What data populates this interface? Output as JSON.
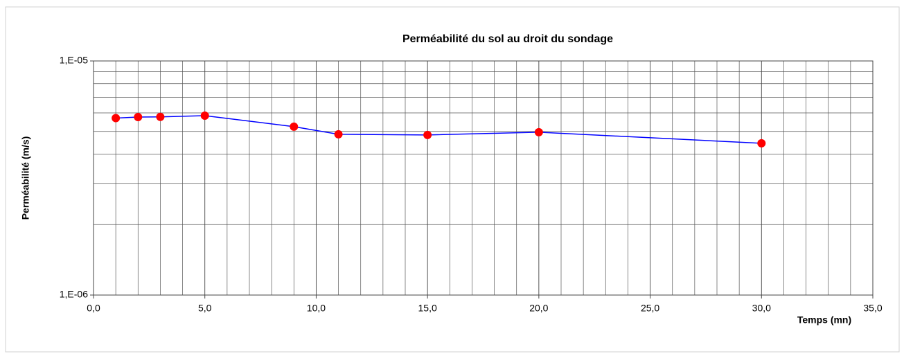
{
  "chart_data": {
    "type": "line",
    "title": "Perméabilité du sol au droit du sondage",
    "x_label": "Temps (mn)",
    "y_label": "Perméabilité (m/s)",
    "x": [
      1,
      2,
      3,
      5,
      9,
      11,
      15,
      20,
      30
    ],
    "series": [
      {
        "color": "#0000ff",
        "marker_color": "#ff0000",
        "values": [
          5.7e-06,
          5.76e-06,
          5.77e-06,
          5.84e-06,
          5.24e-06,
          4.86e-06,
          4.83e-06,
          4.96e-06,
          4.45e-06
        ]
      }
    ],
    "xlim": [
      0,
      35
    ],
    "xticks": [
      {
        "value": 0,
        "label": "0,0"
      },
      {
        "value": 5,
        "label": "5,0"
      },
      {
        "value": 10,
        "label": "10,0"
      },
      {
        "value": 15,
        "label": "15,0"
      },
      {
        "value": 20,
        "label": "20,0"
      },
      {
        "value": 25,
        "label": "25,0"
      },
      {
        "value": 30,
        "label": "30,0"
      },
      {
        "value": 35,
        "label": "35,0"
      }
    ],
    "ylim": [
      1e-06,
      1e-05
    ],
    "yticks": [
      {
        "value": 1e-06,
        "label": "1,E-06"
      },
      {
        "value": 1e-05,
        "label": "1,E-05"
      }
    ],
    "ylog": true,
    "grid": true,
    "minor_grid": true
  }
}
